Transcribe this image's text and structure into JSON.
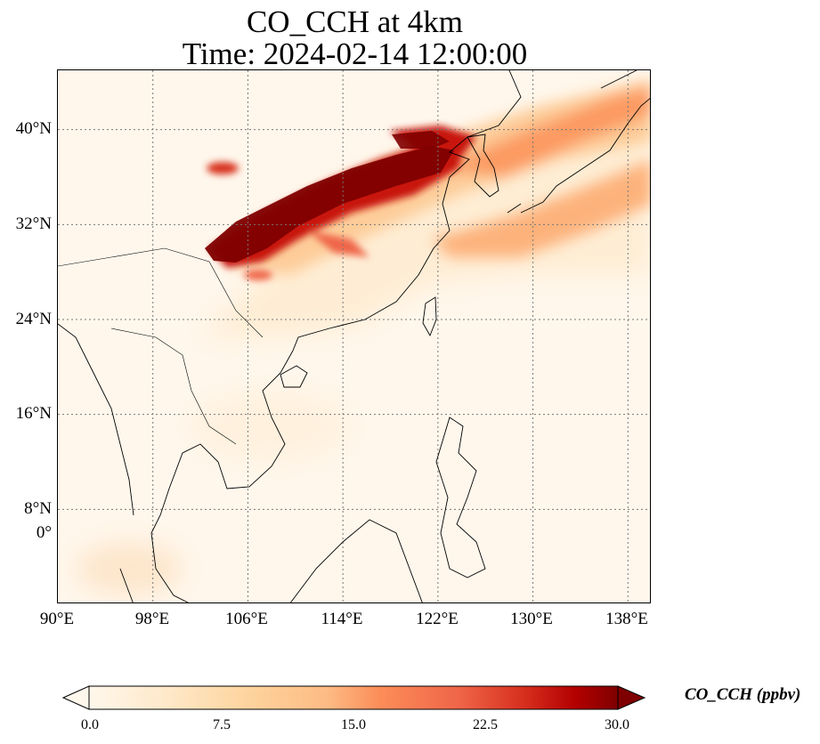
{
  "title": {
    "line1": "CO_CCH at 4km",
    "line2": "Time: 2024-02-14 12:00:00"
  },
  "map": {
    "projection": "PlateCarree",
    "lon_range": [
      90,
      140
    ],
    "lat_range": [
      0,
      45
    ],
    "lat_ticks": [
      "0°",
      "8°N",
      "16°N",
      "24°N",
      "32°N",
      "40°N"
    ],
    "lon_ticks": [
      "90°E",
      "98°E",
      "106°E",
      "114°E",
      "122°E",
      "130°E",
      "138°E"
    ],
    "gridlines": "dotted",
    "field": "CO_CCH",
    "plume_feature": "high CO plume extending from Sichuan Basin across North China Plain to Korea and Japan"
  },
  "colorbar": {
    "colormap": "OrRd",
    "ticks": [
      "0.0",
      "7.5",
      "15.0",
      "22.5",
      "30.0"
    ],
    "range": [
      0,
      30
    ],
    "extend": "both",
    "label": "CO_CCH (ppbv)"
  },
  "colors": {
    "low": "#fff7ec",
    "mid": "#fdbb84",
    "high": "#d7301f",
    "max": "#7f0000"
  }
}
